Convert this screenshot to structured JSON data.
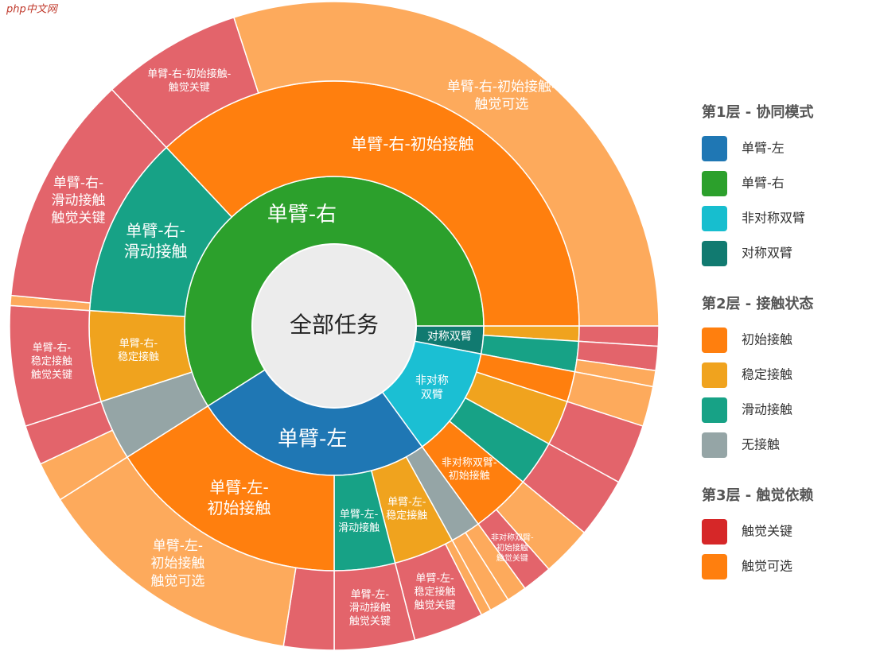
{
  "watermark": "php中文网",
  "chart_data": {
    "type": "sunburst",
    "center_label": "全部任务",
    "nodes": [
      {
        "label": [
          "对称双臂"
        ],
        "value": 3,
        "color": "#117a70",
        "children": [
          {
            "label": null,
            "value": 1,
            "color": "#f0a31e",
            "children": [
              {
                "label": null,
                "value": 1,
                "color": "#e3646b"
              }
            ]
          },
          {
            "label": null,
            "value": 2,
            "color": "#17a286",
            "children": [
              {
                "label": null,
                "value": 1.2,
                "color": "#e3646b"
              },
              {
                "label": null,
                "value": 0.8,
                "color": "#fdaa5c"
              }
            ]
          }
        ]
      },
      {
        "label": [
          "非对称",
          "双臂"
        ],
        "value": 12,
        "color": "#1bbfd3",
        "children": [
          {
            "label": null,
            "value": 2,
            "color": "#ff7f0e",
            "children": [
              {
                "label": null,
                "value": 2,
                "color": "#fdaa5c"
              }
            ]
          },
          {
            "label": null,
            "value": 3,
            "color": "#f0a31e",
            "children": [
              {
                "label": null,
                "value": 3,
                "color": "#e3646b"
              }
            ]
          },
          {
            "label": null,
            "value": 3,
            "color": "#17a286",
            "children": [
              {
                "label": null,
                "value": 3,
                "color": "#e3646b"
              }
            ]
          },
          {
            "label": [
              "非对称双臂-",
              "初始接触"
            ],
            "value": 4,
            "color": "#ff7f0e",
            "children": [
              {
                "label": null,
                "value": 2.5,
                "color": "#fdaa5c"
              },
              {
                "label": [
                  "非对称双臂-",
                  "初始接触",
                  "触觉关键"
                ],
                "value": 1.5,
                "color": "#e3646b"
              }
            ]
          }
        ]
      },
      {
        "label": [
          "单臂-左"
        ],
        "value": 26,
        "color": "#1f77b4",
        "children": [
          {
            "label": null,
            "value": 2,
            "color": "#95a5a6",
            "children": [
              {
                "label": null,
                "value": 1,
                "color": "#fdaa5c"
              },
              {
                "label": null,
                "value": 1,
                "color": "#fdaa5c"
              }
            ]
          },
          {
            "label": [
              "单臂-左-",
              "稳定接触"
            ],
            "value": 4,
            "color": "#f0a31e",
            "children": [
              {
                "label": null,
                "value": 0.5,
                "color": "#fdaa5c"
              },
              {
                "label": [
                  "单臂-左-",
                  "稳定接触",
                  "触觉关键"
                ],
                "value": 3.5,
                "color": "#e3646b"
              }
            ]
          },
          {
            "label": [
              "单臂-左-",
              "滑动接触"
            ],
            "value": 4,
            "color": "#17a286",
            "children": [
              {
                "label": [
                  "单臂-左-",
                  "滑动接触",
                  "触觉关键"
                ],
                "value": 4,
                "color": "#e3646b"
              }
            ]
          },
          {
            "label": [
              "单臂-左-",
              "初始接触"
            ],
            "value": 16,
            "color": "#ff7f0e",
            "children": [
              {
                "label": null,
                "value": 2.5,
                "color": "#e3646b"
              },
              {
                "label": [
                  "单臂-左-",
                  "初始接触",
                  "触觉可选"
                ],
                "value": 13.5,
                "color": "#fdaa5c"
              }
            ]
          }
        ]
      },
      {
        "label": [
          "单臂-右"
        ],
        "value": 59,
        "color": "#2ca02c",
        "children": [
          {
            "label": null,
            "value": 4,
            "color": "#95a5a6",
            "children": [
              {
                "label": null,
                "value": 2,
                "color": "#fdaa5c"
              },
              {
                "label": null,
                "value": 2,
                "color": "#e3646b"
              }
            ]
          },
          {
            "label": [
              "单臂-右-",
              "稳定接触"
            ],
            "value": 6,
            "color": "#f0a31e",
            "children": [
              {
                "label": [
                  "单臂-右-",
                  "稳定接触",
                  "触觉关键"
                ],
                "value": 6,
                "color": "#e3646b"
              }
            ]
          },
          {
            "label": [
              "单臂-右-",
              "滑动接触"
            ],
            "value": 12,
            "color": "#17a286",
            "children": [
              {
                "label": null,
                "value": 0.5,
                "color": "#fdaa5c"
              },
              {
                "label": [
                  "单臂-右-",
                  "滑动接触",
                  "触觉关键"
                ],
                "value": 11.5,
                "color": "#e3646b"
              }
            ]
          },
          {
            "label": [
              "单臂-右-初始接触"
            ],
            "value": 37,
            "color": "#ff7f0e",
            "children": [
              {
                "label": [
                  "单臂-右-初始接触-",
                  "触觉关键"
                ],
                "value": 7,
                "color": "#e3646b"
              },
              {
                "label": [
                  "单臂-右-初始接触-",
                  "触觉可选"
                ],
                "value": 30,
                "color": "#fdaa5c"
              }
            ]
          }
        ]
      }
    ],
    "legend": [
      {
        "title": "第1层 - 协同模式",
        "items": [
          {
            "name": "单臂-左",
            "color": "#1f77b4"
          },
          {
            "name": "单臂-右",
            "color": "#2ca02c"
          },
          {
            "name": "非对称双臂",
            "color": "#17becf"
          },
          {
            "name": "对称双臂",
            "color": "#117a70"
          }
        ]
      },
      {
        "title": "第2层 - 接触状态",
        "items": [
          {
            "name": "初始接触",
            "color": "#ff7f0e"
          },
          {
            "name": "稳定接触",
            "color": "#f0a31e"
          },
          {
            "name": "滑动接触",
            "color": "#17a286"
          },
          {
            "name": "无接触",
            "color": "#95a5a6"
          }
        ]
      },
      {
        "title": "第3层 - 触觉依赖",
        "items": [
          {
            "name": "触觉关键",
            "color": "#d62728"
          },
          {
            "name": "触觉可选",
            "color": "#ff7f0e"
          }
        ]
      }
    ]
  }
}
